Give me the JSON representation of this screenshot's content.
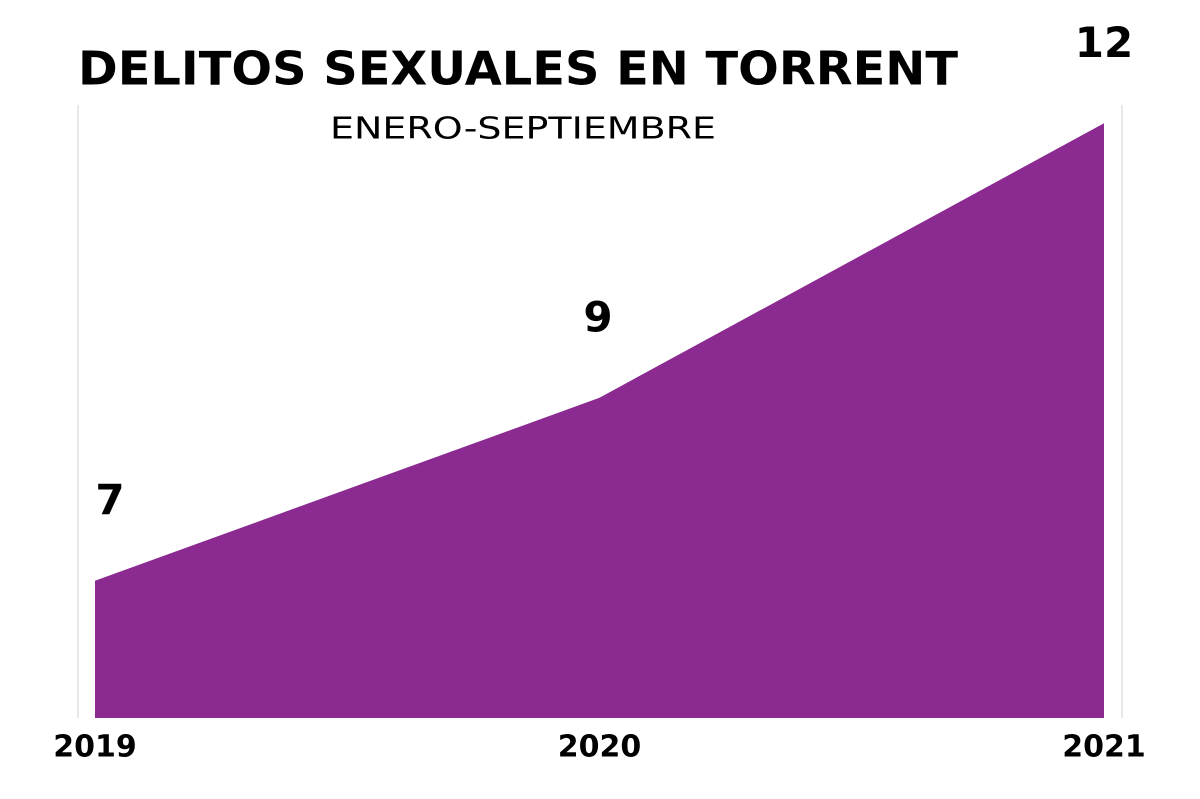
{
  "chart_data": {
    "type": "area",
    "title": "DELITOS SEXUALES EN TORRENT",
    "subtitle": "ENERO-SEPTIEMBRE",
    "categories": [
      "2019",
      "2020",
      "2021"
    ],
    "values": [
      7,
      9,
      12
    ],
    "color": "#8b2a91",
    "ylim": [
      5.5,
      12.5
    ]
  }
}
